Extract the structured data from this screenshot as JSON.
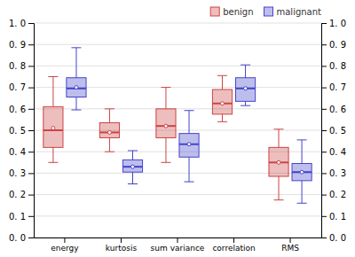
{
  "chart_data": {
    "type": "box",
    "categories": [
      "energy",
      "kurtosis",
      "sum variance",
      "correlation",
      "RMS"
    ],
    "series": [
      {
        "name": "benign",
        "color": "#cc4444",
        "values": [
          {
            "whislo": 0.35,
            "q1": 0.42,
            "med": 0.5,
            "q3": 0.61,
            "whishi": 0.75,
            "mean": 0.51
          },
          {
            "whislo": 0.4,
            "q1": 0.465,
            "med": 0.49,
            "q3": 0.535,
            "whishi": 0.6,
            "mean": 0.49
          },
          {
            "whislo": 0.35,
            "q1": 0.465,
            "med": 0.52,
            "q3": 0.6,
            "whishi": 0.7,
            "mean": 0.52
          },
          {
            "whislo": 0.54,
            "q1": 0.575,
            "med": 0.625,
            "q3": 0.69,
            "whishi": 0.755,
            "mean": 0.625
          },
          {
            "whislo": 0.175,
            "q1": 0.285,
            "med": 0.35,
            "q3": 0.42,
            "whishi": 0.505,
            "mean": 0.35
          }
        ]
      },
      {
        "name": "malignant",
        "color": "#4444cc",
        "values": [
          {
            "whislo": 0.595,
            "q1": 0.655,
            "med": 0.695,
            "q3": 0.745,
            "whishi": 0.885,
            "mean": 0.7
          },
          {
            "whislo": 0.25,
            "q1": 0.305,
            "med": 0.33,
            "q3": 0.362,
            "whishi": 0.405,
            "mean": 0.33
          },
          {
            "whislo": 0.26,
            "q1": 0.375,
            "med": 0.435,
            "q3": 0.485,
            "whishi": 0.592,
            "mean": 0.435
          },
          {
            "whislo": 0.615,
            "q1": 0.635,
            "med": 0.695,
            "q3": 0.745,
            "whishi": 0.805,
            "mean": 0.695
          },
          {
            "whislo": 0.16,
            "q1": 0.265,
            "med": 0.305,
            "q3": 0.345,
            "whishi": 0.455,
            "mean": 0.305
          }
        ]
      }
    ],
    "ylim": [
      0.0,
      1.0
    ],
    "yticks": [
      {
        "value": 0.0,
        "label": "0. 0"
      },
      {
        "value": 0.1,
        "label": "0. 1"
      },
      {
        "value": 0.2,
        "label": "0. 2"
      },
      {
        "value": 0.3,
        "label": "0. 3"
      },
      {
        "value": 0.4,
        "label": "0. 4"
      },
      {
        "value": 0.5,
        "label": "0. 5"
      },
      {
        "value": 0.6,
        "label": "0. 6"
      },
      {
        "value": 0.7,
        "label": "0. 7"
      },
      {
        "value": 0.8,
        "label": "0. 8"
      },
      {
        "value": 0.9,
        "label": "0. 9"
      },
      {
        "value": 1.0,
        "label": "1. 0"
      }
    ],
    "y2lim": [
      0.0,
      1.0
    ],
    "y2ticks": [
      {
        "value": 0.0,
        "label": "0. 0"
      },
      {
        "value": 0.1,
        "label": "0. 1"
      },
      {
        "value": 0.2,
        "label": "0. 2"
      },
      {
        "value": 0.3,
        "label": "0. 3"
      },
      {
        "value": 0.4,
        "label": "0. 4"
      },
      {
        "value": 0.5,
        "label": "0. 5"
      },
      {
        "value": 0.6,
        "label": "0. 6"
      },
      {
        "value": 0.7,
        "label": "0. 7"
      },
      {
        "value": 0.8,
        "label": "0. 8"
      },
      {
        "value": 0.9,
        "label": "0. 9"
      },
      {
        "value": 1.0,
        "label": "1. 0"
      }
    ],
    "grid": true,
    "legend": "upper right"
  }
}
